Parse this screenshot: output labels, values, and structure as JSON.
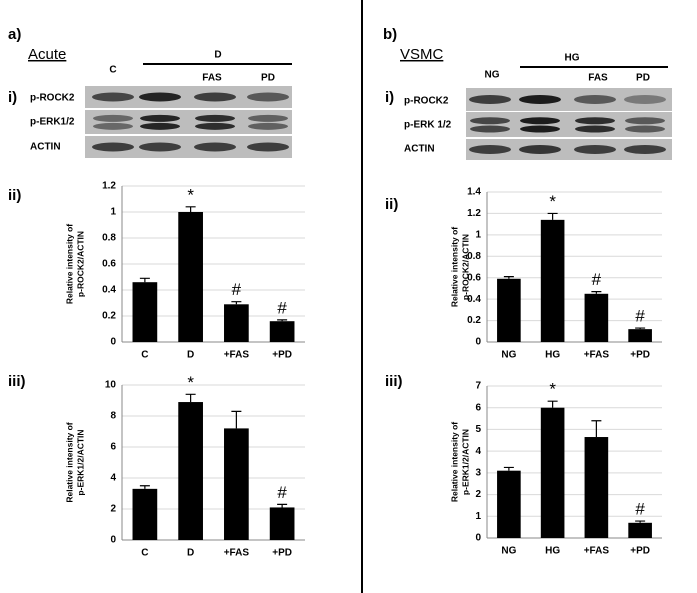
{
  "blots": [
    {
      "panel": "a)",
      "model": "Acute",
      "section": "i)",
      "first_lane": "C",
      "group": "D",
      "sub_lanes": [
        "FAS",
        "PD"
      ],
      "rows": [
        "p-ROCK2",
        "p-ERK1/2",
        "ACTIN"
      ]
    },
    {
      "panel": "b)",
      "model": "VSMC",
      "section": "i)",
      "first_lane": "NG",
      "group": "HG",
      "sub_lanes": [
        "FAS",
        "PD"
      ],
      "rows": [
        "p-ROCK2",
        "p-ERK 1/2",
        "ACTIN"
      ]
    }
  ],
  "chart_data": [
    {
      "type": "bar",
      "section": "ii)",
      "ylabel": [
        "Relative intensity of",
        "p-ROCK2/ACTIN"
      ],
      "categories": [
        "C",
        "D",
        "+FAS",
        "+PD"
      ],
      "values": [
        0.46,
        1.0,
        0.29,
        0.16
      ],
      "errors": [
        0.03,
        0.04,
        0.02,
        0.01
      ],
      "annotations": [
        null,
        "*",
        "#",
        "#"
      ],
      "color": "#000000",
      "ylim": [
        0,
        1.2
      ],
      "yticks": [
        0,
        0.2,
        0.4,
        0.6,
        0.8,
        1,
        1.2
      ],
      "grid": true
    },
    {
      "type": "bar",
      "section": "iii)",
      "ylabel": [
        "Relative intensity of",
        "p-ERK1/2/ACTIN"
      ],
      "categories": [
        "C",
        "D",
        "+FAS",
        "+PD"
      ],
      "values": [
        3.3,
        8.9,
        7.2,
        2.1
      ],
      "errors": [
        0.2,
        0.5,
        1.1,
        0.2
      ],
      "annotations": [
        null,
        "*",
        null,
        "#"
      ],
      "color": "#000000",
      "ylim": [
        0,
        10
      ],
      "yticks": [
        0,
        2,
        4,
        6,
        8,
        10
      ],
      "grid": true
    },
    {
      "type": "bar",
      "section": "ii)",
      "ylabel": [
        "Relative intensity of",
        "p-ROCK2/ACTIN"
      ],
      "categories": [
        "NG",
        "HG",
        "+FAS",
        "+PD"
      ],
      "values": [
        0.59,
        1.14,
        0.45,
        0.12
      ],
      "errors": [
        0.02,
        0.06,
        0.02,
        0.01
      ],
      "annotations": [
        null,
        "*",
        "#",
        "#"
      ],
      "color": "#000000",
      "ylim": [
        0,
        1.4
      ],
      "yticks": [
        0,
        0.2,
        0.4,
        0.6,
        0.8,
        1,
        1.2,
        1.4
      ],
      "grid": true
    },
    {
      "type": "bar",
      "section": "iii)",
      "ylabel": [
        "Relative intensity of",
        "p-ERK1/2/ACTIN"
      ],
      "categories": [
        "NG",
        "HG",
        "+FAS",
        "+PD"
      ],
      "values": [
        3.1,
        6.0,
        4.65,
        0.7
      ],
      "errors": [
        0.15,
        0.3,
        0.75,
        0.08
      ],
      "annotations": [
        null,
        "*",
        null,
        "#"
      ],
      "color": "#000000",
      "ylim": [
        0,
        7
      ],
      "yticks": [
        0,
        1,
        2,
        3,
        4,
        5,
        6,
        7
      ],
      "grid": true
    }
  ]
}
